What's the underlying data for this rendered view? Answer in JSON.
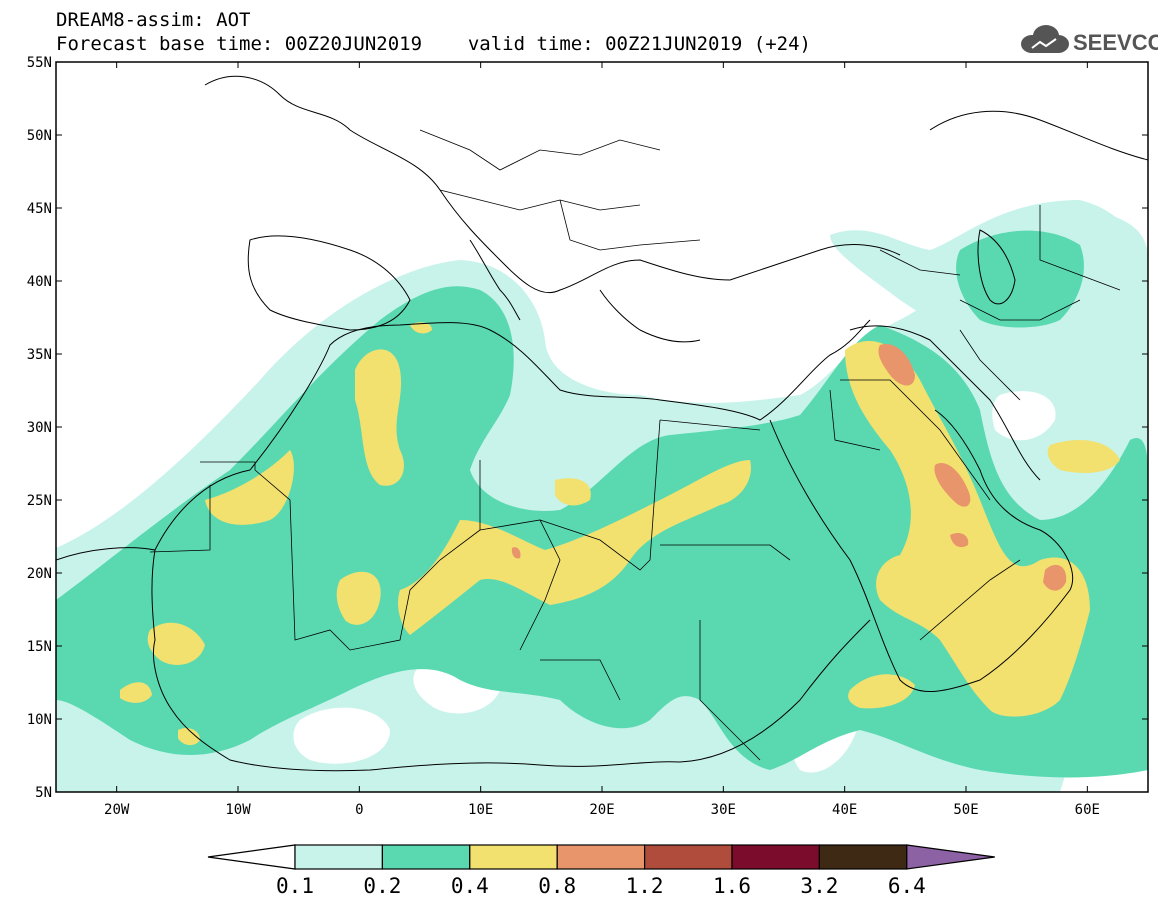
{
  "header": {
    "model_title": "DREAM8-assim: AOT",
    "base_time": "Forecast base time: 00Z20JUN2019",
    "valid_time": "valid time: 00Z21JUN2019 (+24)"
  },
  "logo": {
    "text": "SEEVCCC",
    "icon": "cloud-icon",
    "color": "#555555"
  },
  "map": {
    "lon_range": [
      -25,
      65
    ],
    "lat_range": [
      5,
      55
    ],
    "lat_ticks": [
      "55N",
      "50N",
      "45N",
      "40N",
      "35N",
      "30N",
      "25N",
      "20N",
      "15N",
      "10N",
      "5N"
    ],
    "lon_ticks": [
      "20W",
      "10W",
      "0",
      "10E",
      "20E",
      "30E",
      "40E",
      "50E",
      "60E"
    ]
  },
  "colorbar": {
    "labels": [
      "0.1",
      "0.2",
      "0.4",
      "0.8",
      "1.2",
      "1.6",
      "3.2",
      "6.4"
    ],
    "colors": [
      "#c8f3ea",
      "#5ad9b1",
      "#f2e06f",
      "#e8956b",
      "#b04c3c",
      "#7c0c2c",
      "#3e2a14",
      "#8c62a4"
    ]
  }
}
